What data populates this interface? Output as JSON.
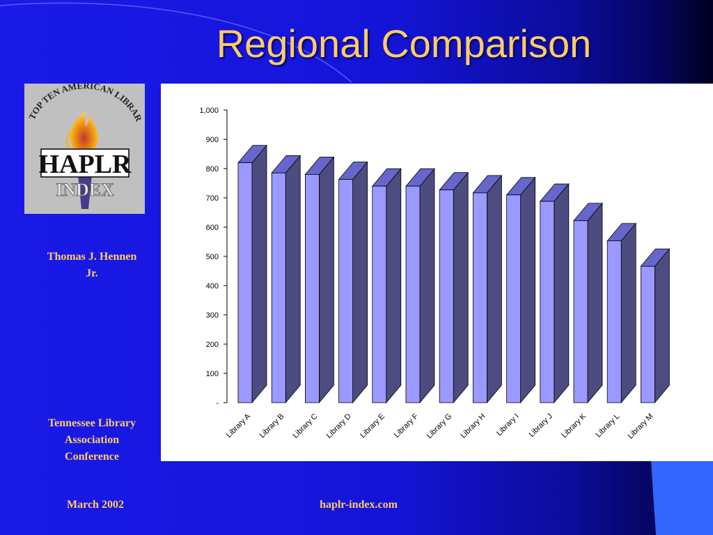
{
  "slide": {
    "title": "Regional Comparison",
    "author": "Thomas J. Hennen Jr.",
    "conference": "Tennessee Library Association Conference",
    "date": "March 2002",
    "website": "haplr-index.com"
  },
  "logo": {
    "arc_text": "A TOP TEN AMERICAN LIBRARY",
    "main_text": "HAPLR",
    "sub_text": "INDEX",
    "icon": "torch-icon"
  },
  "colors": {
    "background": "#1414d8",
    "title": "#ffcc66",
    "bar_front": "#9999ff",
    "bar_side": "#4c4c80",
    "bar_top": "#6666cc"
  },
  "chart_data": {
    "type": "bar",
    "style": "3d",
    "categories": [
      "Library A",
      "Library B",
      "Library C",
      "Library D",
      "Library E",
      "Library F",
      "Library G",
      "Library H",
      "Library I",
      "Library J",
      "Library K",
      "Library L",
      "Library M"
    ],
    "values": [
      820,
      785,
      780,
      763,
      740,
      740,
      727,
      717,
      710,
      688,
      622,
      553,
      466
    ],
    "ylim": [
      0,
      1000
    ],
    "yticks": [
      0,
      100,
      200,
      300,
      400,
      500,
      600,
      700,
      800,
      900,
      1000
    ],
    "ytick_labels": [
      "-",
      "100",
      "200",
      "300",
      "400",
      "500",
      "600",
      "700",
      "800",
      "900",
      "1,000"
    ],
    "grid": false,
    "legend": "none"
  }
}
